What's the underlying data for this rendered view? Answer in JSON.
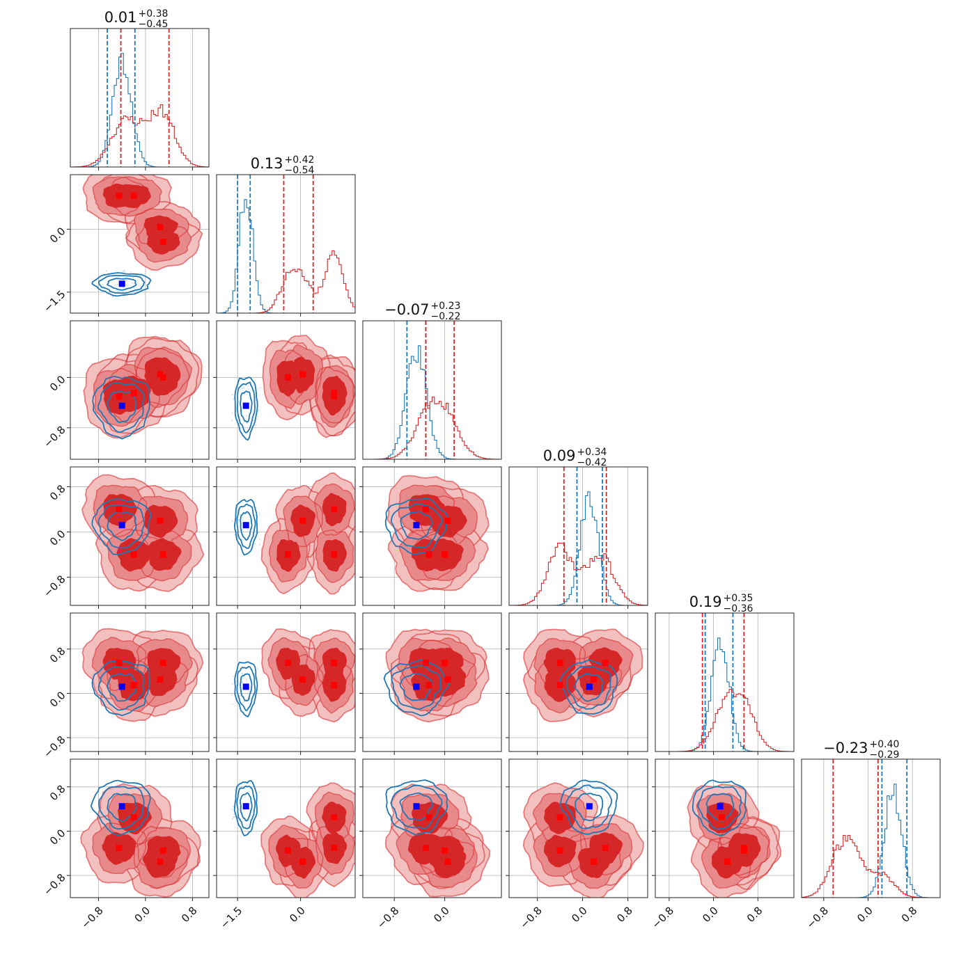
{
  "chart_data": {
    "type": "corner",
    "n_params": 6,
    "titles": [
      {
        "median": "0.01",
        "plus": "+0.38",
        "minus": "−0.45"
      },
      {
        "median": "0.13",
        "plus": "+0.42",
        "minus": "−0.54"
      },
      {
        "median": "−0.07",
        "plus": "+0.23",
        "minus": "−0.22"
      },
      {
        "median": "0.09",
        "plus": "+0.34",
        "minus": "−0.42"
      },
      {
        "median": "0.19",
        "plus": "+0.35",
        "minus": "−0.36"
      },
      {
        "median": "−0.23",
        "plus": "+0.40",
        "minus": "−0.29"
      }
    ],
    "ranges": [
      [
        -1.28,
        1.08
      ],
      [
        -2.0,
        1.3
      ],
      [
        -1.3,
        0.9
      ],
      [
        -1.3,
        1.15
      ],
      [
        -1.05,
        1.45
      ],
      [
        -1.2,
        1.3
      ]
    ],
    "ticks": [
      {
        "values": [
          -0.8,
          0.0,
          0.8
        ],
        "labels": [
          "−0.8",
          "0.0",
          "0.8"
        ]
      },
      {
        "values": [
          -1.5,
          0.0
        ],
        "labels": [
          "−1.5",
          "0.0"
        ]
      },
      {
        "values": [
          -0.8,
          0.0
        ],
        "labels": [
          "−0.8",
          "0.0"
        ]
      },
      {
        "values": [
          -0.8,
          0.0,
          0.8
        ],
        "labels": [
          "−0.8",
          "0.0",
          "0.8"
        ]
      },
      {
        "values": [
          -0.8,
          0.0,
          0.8
        ],
        "labels": [
          "−0.8",
          "0.0",
          "0.8"
        ]
      },
      {
        "values": [
          -0.8,
          0.0,
          0.8
        ],
        "labels": [
          "−0.8",
          "0.0",
          "0.8"
        ]
      }
    ],
    "colors": {
      "red": "#d62728",
      "red_mid": "#e88a8b",
      "red_light": "#f3c0c0",
      "blue": "#1f77b4",
      "blue_marker": "#0000ff",
      "red_marker": "#ff0000"
    },
    "red_components": [
      [
        -0.45,
        0.8,
        -0.3,
        0.4,
        0.55,
        -0.3
      ],
      [
        -0.2,
        0.8,
        -0.25,
        -0.4,
        0.15,
        0.25
      ],
      [
        0.25,
        0.05,
        0.05,
        0.2,
        0.25,
        -0.55
      ],
      [
        0.3,
        -0.3,
        0.0,
        -0.4,
        0.55,
        -0.35
      ]
    ],
    "blue_component": [
      -0.4,
      -1.3,
      -0.45,
      0.12,
      0.12,
      0.45
    ],
    "quantile_lines": {
      "blue": [
        [
          -0.65,
          -0.18
        ],
        [
          -1.5,
          -1.2
        ],
        [
          -0.6,
          -0.3
        ],
        [
          -0.1,
          0.35
        ],
        [
          -0.15,
          0.35
        ],
        [
          0.25,
          0.7
        ]
      ],
      "red": [
        [
          -0.42,
          0.4
        ],
        [
          -0.4,
          0.3
        ],
        [
          -0.3,
          0.15
        ],
        [
          -0.33,
          0.42
        ],
        [
          -0.2,
          0.55
        ],
        [
          -0.63,
          0.18
        ]
      ]
    }
  }
}
